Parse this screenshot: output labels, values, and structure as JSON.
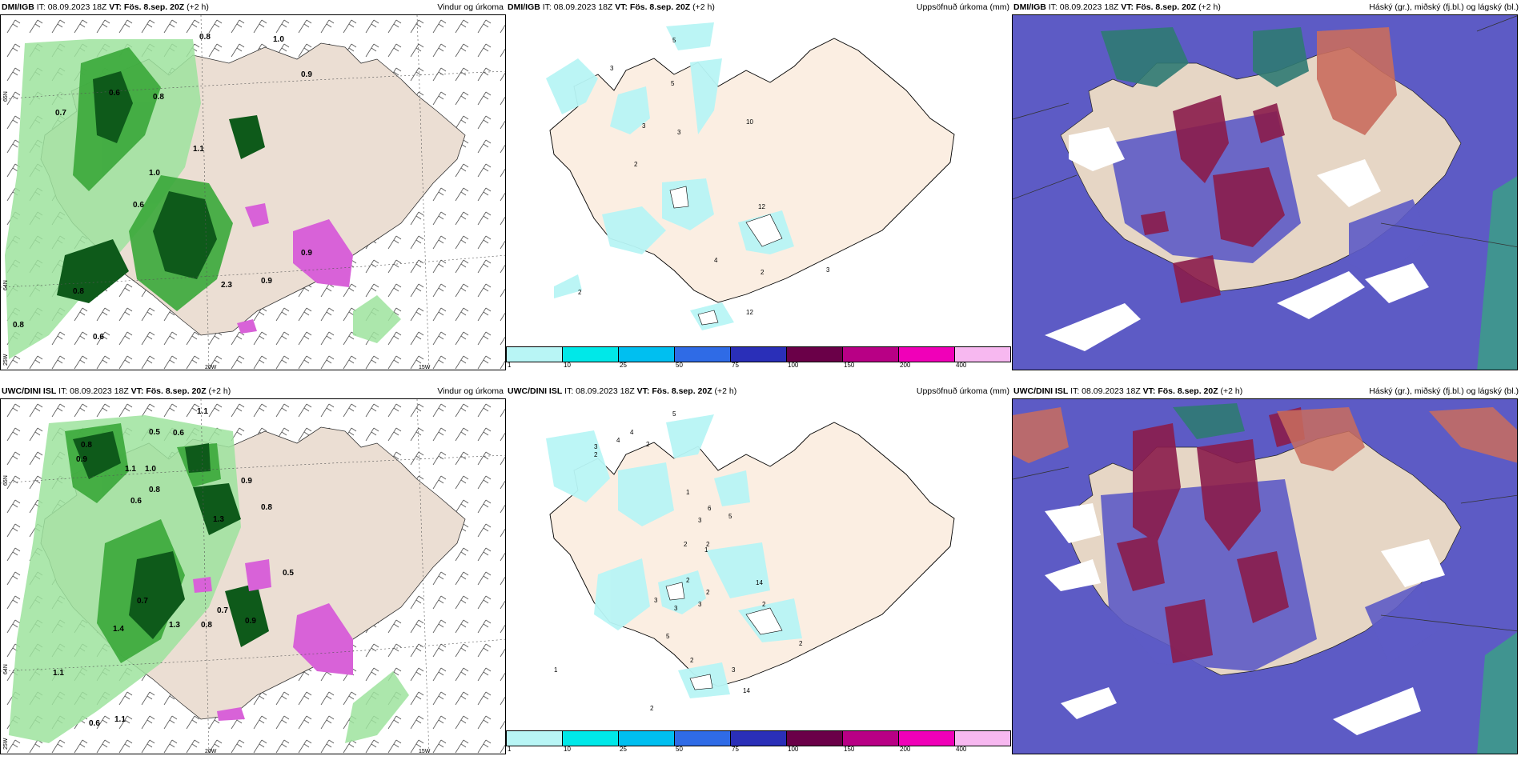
{
  "panels": [
    {
      "model": "DMI/IGB",
      "it": "IT: 08.09.2023 18Z",
      "vt": "VT: Fös. 8.sep. 20Z",
      "lead": "(+2 h)",
      "title": "Vindur og úrkoma"
    },
    {
      "model": "DMI/IGB",
      "it": "IT: 08.09.2023 18Z",
      "vt": "VT: Fös. 8.sep. 20Z",
      "lead": "(+2 h)",
      "title": "Uppsöfnuð úrkoma (mm)"
    },
    {
      "model": "DMI/IGB",
      "it": "IT: 08.09.2023 18Z",
      "vt": "VT: Fös. 8.sep. 20Z",
      "lead": "(+2 h)",
      "title": "Háský (gr.), miðský (fj.bl.) og lágský (bl.)"
    },
    {
      "model": "UWC/DINI ISL",
      "it": "IT: 08.09.2023 18Z",
      "vt": "VT: Fös. 8.sep. 20Z",
      "lead": "(+2 h)",
      "title": "Vindur og úrkoma"
    },
    {
      "model": "UWC/DINI ISL",
      "it": "IT: 08.09.2023 18Z",
      "vt": "VT: Fös. 8.sep. 20Z",
      "lead": "(+2 h)",
      "title": "Uppsöfnuð úrkoma (mm)"
    },
    {
      "model": "UWC/DINI ISL",
      "it": "IT: 08.09.2023 18Z",
      "vt": "VT: Fös. 8.sep. 20Z",
      "lead": "(+2 h)",
      "title": "Háský (gr.), miðský (fj.bl.) og lágský (bl.)"
    }
  ],
  "axis_labels": {
    "lat_top": "65N",
    "lat_bottom": "64N",
    "lon_left": "25W",
    "lon_mid": "20W",
    "lon_right": "15W"
  },
  "colorbar": {
    "colors": [
      "#b8f5f5",
      "#00e8e8",
      "#00bff0",
      "#2f6be6",
      "#2a2fb8",
      "#6a0048",
      "#b80085",
      "#f000b8",
      "#f7b8f0"
    ],
    "ticks": [
      "1",
      "10",
      "25",
      "50",
      "75",
      "100",
      "150",
      "200",
      "400"
    ]
  },
  "precip_labels_top": [
    "0.8",
    "1.0",
    "0.9",
    "0.6",
    "0.7",
    "0.8",
    "1.1",
    "1.0",
    "0.6",
    "2.3",
    "0.9",
    "0.8",
    "0.6",
    "0.8",
    "0.9"
  ],
  "precip_labels_bottom": [
    "1.1",
    "0.8",
    "0.5",
    "0.6",
    "0.9",
    "1.0",
    "1.1",
    "0.8",
    "1.3",
    "0.6",
    "0.8",
    "0.7",
    "0.7",
    "1.4",
    "1.1",
    "0.9",
    "0.5",
    "0.6",
    "1.1",
    "1.3",
    "0.8",
    "0.9"
  ],
  "accum_labels_top": [
    "5",
    "3",
    "5",
    "3",
    "3",
    "10",
    "2",
    "12",
    "4",
    "2",
    "2",
    "3",
    "12"
  ],
  "accum_labels_bottom": [
    "5",
    "3",
    "4",
    "2",
    "2",
    "4",
    "1",
    "3",
    "6",
    "5",
    "2",
    "2",
    "1",
    "2",
    "3",
    "14",
    "2",
    "3",
    "2",
    "3",
    "5",
    "2",
    "1",
    "2",
    "3",
    "14",
    "2"
  ]
}
